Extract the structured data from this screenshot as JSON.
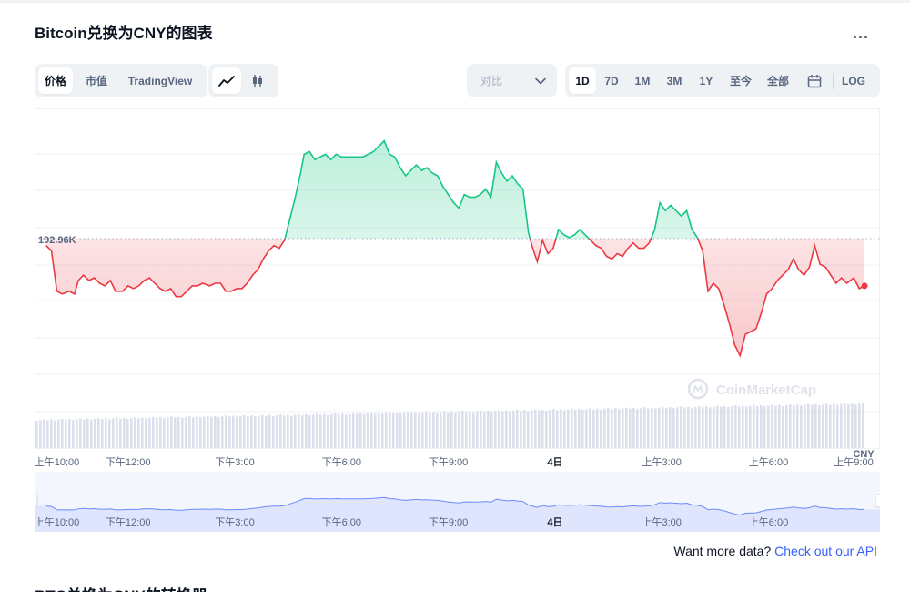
{
  "header": {
    "title": "Bitcoin兑换为CNY的图表",
    "more_label": "..."
  },
  "tabs": [
    {
      "label": "价格",
      "active": true
    },
    {
      "label": "市值",
      "active": false
    },
    {
      "label": "TradingView",
      "active": false
    }
  ],
  "compare": {
    "label": "对比"
  },
  "ranges": [
    {
      "label": "1D",
      "active": true
    },
    {
      "label": "7D",
      "active": false
    },
    {
      "label": "1M",
      "active": false
    },
    {
      "label": "3M",
      "active": false
    },
    {
      "label": "1Y",
      "active": false
    },
    {
      "label": "至今",
      "active": false
    },
    {
      "label": "全部",
      "active": false
    }
  ],
  "log_label": "LOG",
  "colors": {
    "up": "#16c784",
    "down": "#ea3943",
    "accent": "#3861fb",
    "muted": "#58667e"
  },
  "icons": {
    "line": "line-chart-icon",
    "candle": "candlestick-icon",
    "calendar": "calendar-icon",
    "dropdown": "chevron-down-icon",
    "watermark": "coinmarketcap-logo-icon"
  },
  "chart_data": {
    "type": "line",
    "baseline_label": "192.96K",
    "baseline_value": 192.96,
    "currency_label": "CNY",
    "watermark": "CoinMarketCap",
    "ylim": [
      187.5,
      197.5
    ],
    "x_ticks": [
      "上午10:00",
      "下午12:00",
      "下午3:00",
      "下午6:00",
      "下午9:00",
      "4日",
      "上午3:00",
      "上午6:00",
      "上午9:00"
    ],
    "x_tick_hours": [
      0,
      2,
      5,
      8,
      11,
      14,
      17,
      20,
      23
    ],
    "navigator_ticks": [
      "上午10:00",
      "下午12:00",
      "下午3:00",
      "下午6:00",
      "下午9:00",
      "4日",
      "上午3:00",
      "上午6:00"
    ],
    "series": [
      {
        "values": [
          [
            -0.3,
            192.7
          ],
          [
            -0.15,
            192.5
          ],
          [
            0,
            191.0
          ],
          [
            0.15,
            190.9
          ],
          [
            0.35,
            191.0
          ],
          [
            0.5,
            190.9
          ],
          [
            0.6,
            191.4
          ],
          [
            0.75,
            191.6
          ],
          [
            0.9,
            191.4
          ],
          [
            1.05,
            191.5
          ],
          [
            1.2,
            191.3
          ],
          [
            1.35,
            191.2
          ],
          [
            1.5,
            191.4
          ],
          [
            1.65,
            191.0
          ],
          [
            1.85,
            191.0
          ],
          [
            2.0,
            191.2
          ],
          [
            2.15,
            191.1
          ],
          [
            2.3,
            191.2
          ],
          [
            2.45,
            191.4
          ],
          [
            2.6,
            191.5
          ],
          [
            2.75,
            191.3
          ],
          [
            2.9,
            191.1
          ],
          [
            3.05,
            191.0
          ],
          [
            3.2,
            191.1
          ],
          [
            3.35,
            190.8
          ],
          [
            3.5,
            190.8
          ],
          [
            3.65,
            191.0
          ],
          [
            3.8,
            191.2
          ],
          [
            3.95,
            191.2
          ],
          [
            4.1,
            191.3
          ],
          [
            4.3,
            191.2
          ],
          [
            4.45,
            191.3
          ],
          [
            4.6,
            191.3
          ],
          [
            4.75,
            191.0
          ],
          [
            4.9,
            191.0
          ],
          [
            5.05,
            191.1
          ],
          [
            5.2,
            191.1
          ],
          [
            5.35,
            191.3
          ],
          [
            5.5,
            191.6
          ],
          [
            5.65,
            191.8
          ],
          [
            5.8,
            192.2
          ],
          [
            5.95,
            192.5
          ],
          [
            6.1,
            192.7
          ],
          [
            6.25,
            192.6
          ],
          [
            6.4,
            192.9
          ],
          [
            6.55,
            193.7
          ],
          [
            6.7,
            194.5
          ],
          [
            6.85,
            195.4
          ],
          [
            6.95,
            196.1
          ],
          [
            7.1,
            196.2
          ],
          [
            7.25,
            195.9
          ],
          [
            7.4,
            196.0
          ],
          [
            7.55,
            196.1
          ],
          [
            7.7,
            195.9
          ],
          [
            7.85,
            196.1
          ],
          [
            8.0,
            196.0
          ],
          [
            8.15,
            196.0
          ],
          [
            8.3,
            196.0
          ],
          [
            8.45,
            196.0
          ],
          [
            8.6,
            196.0
          ],
          [
            8.75,
            196.1
          ],
          [
            8.9,
            196.2
          ],
          [
            9.05,
            196.4
          ],
          [
            9.2,
            196.6
          ],
          [
            9.35,
            196.1
          ],
          [
            9.5,
            196.0
          ],
          [
            9.65,
            195.6
          ],
          [
            9.8,
            195.3
          ],
          [
            9.95,
            195.5
          ],
          [
            10.1,
            195.7
          ],
          [
            10.25,
            195.5
          ],
          [
            10.4,
            195.6
          ],
          [
            10.55,
            195.4
          ],
          [
            10.7,
            195.3
          ],
          [
            10.85,
            194.9
          ],
          [
            11.0,
            194.6
          ],
          [
            11.15,
            194.3
          ],
          [
            11.3,
            194.1
          ],
          [
            11.45,
            194.6
          ],
          [
            11.6,
            194.5
          ],
          [
            11.75,
            194.5
          ],
          [
            11.9,
            194.6
          ],
          [
            12.05,
            194.8
          ],
          [
            12.2,
            194.5
          ],
          [
            12.35,
            195.8
          ],
          [
            12.5,
            195.4
          ],
          [
            12.65,
            195.1
          ],
          [
            12.8,
            195.3
          ],
          [
            12.95,
            195.0
          ],
          [
            13.1,
            194.8
          ],
          [
            13.25,
            193.2
          ],
          [
            13.35,
            192.7
          ],
          [
            13.5,
            192.1
          ],
          [
            13.65,
            192.9
          ],
          [
            13.8,
            192.4
          ],
          [
            13.95,
            192.6
          ],
          [
            14.1,
            193.3
          ],
          [
            14.25,
            193.1
          ],
          [
            14.4,
            193.0
          ],
          [
            14.55,
            193.1
          ],
          [
            14.7,
            193.3
          ],
          [
            14.85,
            193.1
          ],
          [
            15.0,
            192.9
          ],
          [
            15.15,
            192.7
          ],
          [
            15.3,
            192.6
          ],
          [
            15.45,
            192.3
          ],
          [
            15.6,
            192.2
          ],
          [
            15.75,
            192.4
          ],
          [
            15.9,
            192.3
          ],
          [
            16.05,
            192.6
          ],
          [
            16.2,
            192.8
          ],
          [
            16.35,
            192.6
          ],
          [
            16.5,
            192.6
          ],
          [
            16.65,
            192.8
          ],
          [
            16.8,
            193.3
          ],
          [
            16.95,
            194.3
          ],
          [
            17.1,
            194.0
          ],
          [
            17.25,
            194.2
          ],
          [
            17.4,
            194.0
          ],
          [
            17.55,
            193.8
          ],
          [
            17.7,
            194.0
          ],
          [
            17.85,
            193.3
          ],
          [
            18.0,
            193.0
          ],
          [
            18.15,
            192.5
          ],
          [
            18.3,
            191.0
          ],
          [
            18.45,
            191.3
          ],
          [
            18.6,
            191.1
          ],
          [
            18.75,
            190.5
          ],
          [
            18.9,
            189.8
          ],
          [
            19.05,
            189.0
          ],
          [
            19.2,
            188.6
          ],
          [
            19.35,
            189.4
          ],
          [
            19.5,
            189.5
          ],
          [
            19.65,
            189.6
          ],
          [
            19.8,
            190.2
          ],
          [
            19.95,
            190.9
          ],
          [
            20.1,
            191.1
          ],
          [
            20.25,
            191.4
          ],
          [
            20.4,
            191.6
          ],
          [
            20.55,
            191.8
          ],
          [
            20.7,
            192.2
          ],
          [
            20.85,
            191.8
          ],
          [
            21.0,
            191.6
          ],
          [
            21.15,
            191.9
          ],
          [
            21.3,
            192.7
          ],
          [
            21.45,
            192.0
          ],
          [
            21.6,
            191.9
          ],
          [
            21.75,
            191.6
          ],
          [
            21.9,
            191.3
          ],
          [
            22.05,
            191.5
          ],
          [
            22.2,
            191.3
          ],
          [
            22.4,
            191.5
          ],
          [
            22.55,
            191.1
          ],
          [
            22.7,
            191.2
          ]
        ]
      }
    ]
  }
}
